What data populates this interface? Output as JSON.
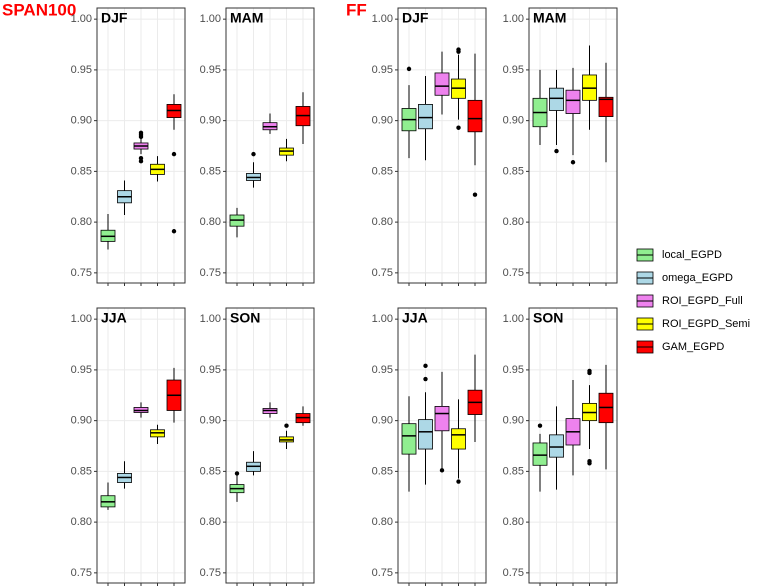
{
  "figure_labels": [
    "SPAN100",
    "FF"
  ],
  "legend": {
    "names": [
      "local_EGPD",
      "omega_EGPD",
      "ROI_EGPD_Full",
      "ROI_EGPD_Semi",
      "GAM_EGPD"
    ],
    "colors": [
      "#90ee90",
      "#add8e6",
      "#ee82ee",
      "#ffff00",
      "#ff0000"
    ]
  },
  "chart_data": [
    {
      "type": "box",
      "title": "DJF",
      "ylim": [
        0.74,
        1.011
      ],
      "yticks": [
        0.75,
        {
          "value": 0.8,
          "label": "0.80"
        },
        0.85,
        {
          "value": 0.9,
          "label": "0.90"
        },
        0.95,
        {
          "value": 1,
          "label": "1.00"
        }
      ],
      "grid": true,
      "boxes": [
        {
          "whislo": 0.773,
          "q1": 0.781,
          "med": 0.786,
          "q3": 0.792,
          "whishi": 0.808,
          "fliers": []
        },
        {
          "whislo": 0.807,
          "q1": 0.819,
          "med": 0.825,
          "q3": 0.831,
          "whishi": 0.841,
          "fliers": []
        },
        {
          "whislo": 0.867,
          "q1": 0.872,
          "med": 0.875,
          "q3": 0.878,
          "whishi": 0.882,
          "fliers": [
            0.888,
            0.886,
            0.884,
            0.863,
            0.86
          ]
        },
        {
          "whislo": 0.84,
          "q1": 0.847,
          "med": 0.852,
          "q3": 0.857,
          "whishi": 0.865,
          "fliers": []
        },
        {
          "whislo": 0.891,
          "q1": 0.903,
          "med": 0.91,
          "q3": 0.916,
          "whishi": 0.926,
          "fliers": [
            0.867,
            0.791
          ]
        }
      ]
    },
    {
      "type": "box",
      "title": "MAM",
      "ylim": [
        0.74,
        1.011
      ],
      "yticks": [
        0.75,
        {
          "value": 0.8,
          "label": "0.80"
        },
        0.85,
        {
          "value": 0.9,
          "label": "0.90"
        },
        0.95,
        {
          "value": 1,
          "label": "1.00"
        }
      ],
      "grid": true,
      "boxes": [
        {
          "whislo": 0.785,
          "q1": 0.796,
          "med": 0.802,
          "q3": 0.807,
          "whishi": 0.814,
          "fliers": []
        },
        {
          "whislo": 0.834,
          "q1": 0.841,
          "med": 0.844,
          "q3": 0.848,
          "whishi": 0.859,
          "fliers": [
            0.867
          ]
        },
        {
          "whislo": 0.887,
          "q1": 0.891,
          "med": 0.894,
          "q3": 0.898,
          "whishi": 0.907,
          "fliers": []
        },
        {
          "whislo": 0.86,
          "q1": 0.866,
          "med": 0.87,
          "q3": 0.873,
          "whishi": 0.882,
          "fliers": []
        },
        {
          "whislo": 0.877,
          "q1": 0.895,
          "med": 0.905,
          "q3": 0.914,
          "whishi": 0.928,
          "fliers": []
        }
      ]
    },
    {
      "type": "box",
      "title": "DJF",
      "ylim": [
        0.74,
        1.011
      ],
      "yticks": [
        0.75,
        {
          "value": 0.8,
          "label": "0.80"
        },
        0.85,
        {
          "value": 0.9,
          "label": "0.90"
        },
        0.95,
        {
          "value": 1,
          "label": "1.00"
        }
      ],
      "grid": true,
      "boxes": [
        {
          "whislo": 0.863,
          "q1": 0.89,
          "med": 0.901,
          "q3": 0.912,
          "whishi": 0.935,
          "fliers": [
            0.951
          ]
        },
        {
          "whislo": 0.861,
          "q1": 0.892,
          "med": 0.903,
          "q3": 0.916,
          "whishi": 0.944,
          "fliers": []
        },
        {
          "whislo": 0.906,
          "q1": 0.925,
          "med": 0.934,
          "q3": 0.947,
          "whishi": 0.968,
          "fliers": []
        },
        {
          "whislo": 0.901,
          "q1": 0.922,
          "med": 0.932,
          "q3": 0.941,
          "whishi": 0.965,
          "fliers": [
            0.97,
            0.968,
            0.893
          ]
        },
        {
          "whislo": 0.856,
          "q1": 0.889,
          "med": 0.902,
          "q3": 0.92,
          "whishi": 0.966,
          "fliers": [
            0.827
          ]
        }
      ]
    },
    {
      "type": "box",
      "title": "MAM",
      "ylim": [
        0.74,
        1.011
      ],
      "yticks": [
        0.75,
        {
          "value": 0.8,
          "label": "0.80"
        },
        0.85,
        {
          "value": 0.9,
          "label": "0.90"
        },
        0.95,
        {
          "value": 1,
          "label": "1.00"
        }
      ],
      "grid": true,
      "boxes": [
        {
          "whislo": 0.876,
          "q1": 0.894,
          "med": 0.908,
          "q3": 0.922,
          "whishi": 0.95,
          "fliers": []
        },
        {
          "whislo": 0.876,
          "q1": 0.91,
          "med": 0.922,
          "q3": 0.932,
          "whishi": 0.95,
          "fliers": [
            0.87
          ]
        },
        {
          "whislo": 0.866,
          "q1": 0.907,
          "med": 0.92,
          "q3": 0.93,
          "whishi": 0.952,
          "fliers": [
            0.859
          ]
        },
        {
          "whislo": 0.891,
          "q1": 0.92,
          "med": 0.932,
          "q3": 0.945,
          "whishi": 0.974,
          "fliers": []
        },
        {
          "whislo": 0.859,
          "q1": 0.904,
          "med": 0.921,
          "q3": 0.923,
          "whishi": 0.957,
          "fliers": []
        }
      ]
    },
    {
      "type": "box",
      "title": "JJA",
      "ylim": [
        0.74,
        1.011
      ],
      "yticks": [
        0.75,
        {
          "value": 0.8,
          "label": "0.80"
        },
        0.85,
        {
          "value": 0.9,
          "label": "0.90"
        },
        0.95,
        {
          "value": 1,
          "label": "1.00"
        }
      ],
      "grid": true,
      "boxes": [
        {
          "whislo": 0.812,
          "q1": 0.815,
          "med": 0.82,
          "q3": 0.826,
          "whishi": 0.839,
          "fliers": []
        },
        {
          "whislo": 0.833,
          "q1": 0.839,
          "med": 0.844,
          "q3": 0.848,
          "whishi": 0.86,
          "fliers": []
        },
        {
          "whislo": 0.903,
          "q1": 0.908,
          "med": 0.91,
          "q3": 0.913,
          "whishi": 0.918,
          "fliers": []
        },
        {
          "whislo": 0.877,
          "q1": 0.884,
          "med": 0.888,
          "q3": 0.891,
          "whishi": 0.896,
          "fliers": []
        },
        {
          "whislo": 0.898,
          "q1": 0.91,
          "med": 0.925,
          "q3": 0.94,
          "whishi": 0.952,
          "fliers": []
        }
      ]
    },
    {
      "type": "box",
      "title": "SON",
      "ylim": [
        0.74,
        1.011
      ],
      "yticks": [
        0.75,
        {
          "value": 0.8,
          "label": "0.80"
        },
        0.85,
        {
          "value": 0.9,
          "label": "0.90"
        },
        0.95,
        {
          "value": 1,
          "label": "1.00"
        }
      ],
      "grid": true,
      "boxes": [
        {
          "whislo": 0.82,
          "q1": 0.829,
          "med": 0.833,
          "q3": 0.837,
          "whishi": 0.846,
          "fliers": [
            0.848
          ]
        },
        {
          "whislo": 0.846,
          "q1": 0.85,
          "med": 0.855,
          "q3": 0.859,
          "whishi": 0.87,
          "fliers": []
        },
        {
          "whislo": 0.903,
          "q1": 0.907,
          "med": 0.91,
          "q3": 0.912,
          "whishi": 0.918,
          "fliers": []
        },
        {
          "whislo": 0.872,
          "q1": 0.879,
          "med": 0.881,
          "q3": 0.884,
          "whishi": 0.89,
          "fliers": [
            0.895
          ]
        },
        {
          "whislo": 0.895,
          "q1": 0.898,
          "med": 0.903,
          "q3": 0.907,
          "whishi": 0.914,
          "fliers": []
        }
      ]
    },
    {
      "type": "box",
      "title": "JJA",
      "ylim": [
        0.74,
        1.011
      ],
      "yticks": [
        0.75,
        {
          "value": 0.8,
          "label": "0.80"
        },
        0.85,
        {
          "value": 0.9,
          "label": "0.90"
        },
        0.95,
        {
          "value": 1,
          "label": "1.00"
        }
      ],
      "grid": true,
      "boxes": [
        {
          "whislo": 0.83,
          "q1": 0.867,
          "med": 0.885,
          "q3": 0.897,
          "whishi": 0.924,
          "fliers": []
        },
        {
          "whislo": 0.837,
          "q1": 0.872,
          "med": 0.889,
          "q3": 0.901,
          "whishi": 0.928,
          "fliers": [
            0.954,
            0.941
          ]
        },
        {
          "whislo": 0.853,
          "q1": 0.89,
          "med": 0.907,
          "q3": 0.914,
          "whishi": 0.948,
          "fliers": [
            0.851
          ]
        },
        {
          "whislo": 0.843,
          "q1": 0.872,
          "med": 0.886,
          "q3": 0.892,
          "whishi": 0.921,
          "fliers": [
            0.84
          ]
        },
        {
          "whislo": 0.879,
          "q1": 0.906,
          "med": 0.918,
          "q3": 0.93,
          "whishi": 0.965,
          "fliers": []
        }
      ]
    },
    {
      "type": "box",
      "title": "SON",
      "ylim": [
        0.74,
        1.011
      ],
      "yticks": [
        0.75,
        {
          "value": 0.8,
          "label": "0.80"
        },
        0.85,
        {
          "value": 0.9,
          "label": "0.90"
        },
        0.95,
        {
          "value": 1,
          "label": "1.00"
        }
      ],
      "grid": true,
      "boxes": [
        {
          "whislo": 0.83,
          "q1": 0.856,
          "med": 0.866,
          "q3": 0.878,
          "whishi": 0.887,
          "fliers": [
            0.895
          ]
        },
        {
          "whislo": 0.832,
          "q1": 0.864,
          "med": 0.874,
          "q3": 0.886,
          "whishi": 0.914,
          "fliers": []
        },
        {
          "whislo": 0.846,
          "q1": 0.876,
          "med": 0.889,
          "q3": 0.902,
          "whishi": 0.94,
          "fliers": []
        },
        {
          "whislo": 0.872,
          "q1": 0.9,
          "med": 0.908,
          "q3": 0.917,
          "whishi": 0.935,
          "fliers": [
            0.949,
            0.947,
            0.86,
            0.858
          ]
        },
        {
          "whislo": 0.852,
          "q1": 0.898,
          "med": 0.913,
          "q3": 0.927,
          "whishi": 0.955,
          "fliers": []
        }
      ]
    }
  ]
}
